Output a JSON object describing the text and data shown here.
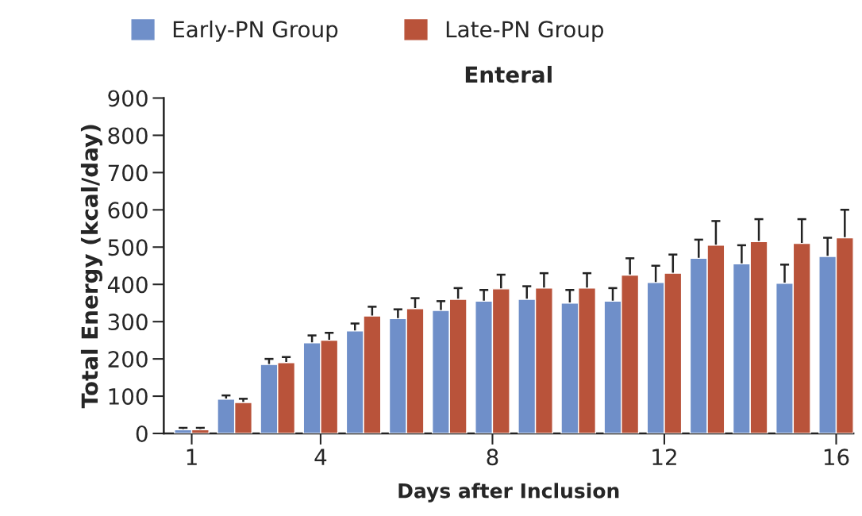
{
  "chart_data": {
    "type": "bar",
    "title": "Enteral",
    "xlabel": "Days after Inclusion",
    "ylabel": "Total Energy (kcal/day)",
    "x": [
      1,
      2,
      3,
      4,
      5,
      6,
      7,
      8,
      9,
      10,
      11,
      12,
      13,
      14,
      15,
      16
    ],
    "xlim": [
      0.35,
      16.4
    ],
    "xticks": [
      1,
      4,
      8,
      12,
      16
    ],
    "ylim": [
      0,
      900
    ],
    "yticks": [
      0,
      100,
      200,
      300,
      400,
      500,
      600,
      700,
      800,
      900
    ],
    "series": [
      {
        "name": "Early-PN Group",
        "color": "#6f8fc9",
        "values": [
          10,
          92,
          185,
          243,
          275,
          308,
          330,
          355,
          360,
          350,
          355,
          405,
          470,
          455,
          403,
          475
        ],
        "errors": [
          5,
          10,
          15,
          20,
          20,
          25,
          25,
          30,
          35,
          35,
          35,
          45,
          50,
          50,
          50,
          50
        ]
      },
      {
        "name": "Late-PN Group",
        "color": "#b9533a",
        "values": [
          10,
          83,
          190,
          250,
          315,
          335,
          360,
          388,
          390,
          390,
          425,
          430,
          505,
          515,
          510,
          525
        ],
        "errors": [
          5,
          10,
          15,
          20,
          25,
          28,
          30,
          38,
          40,
          40,
          45,
          50,
          65,
          60,
          65,
          75
        ]
      }
    ],
    "grid": false,
    "legend": "top left"
  }
}
